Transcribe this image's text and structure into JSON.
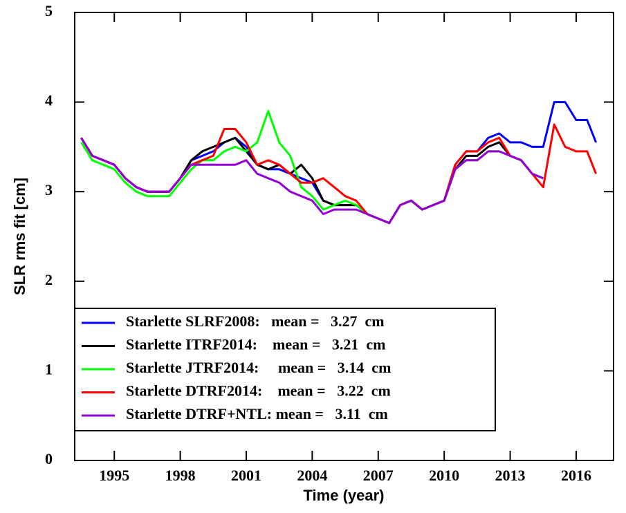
{
  "chart_data": {
    "type": "line",
    "xlabel": "Time (year)",
    "ylabel": "SLR rms fit [cm]",
    "x": [
      1993.5,
      1994,
      1994.5,
      1995,
      1995.5,
      1996,
      1996.5,
      1997,
      1997.5,
      1998,
      1998.5,
      1999,
      1999.5,
      2000,
      2000.5,
      2001,
      2001.5,
      2002,
      2002.5,
      2003,
      2003.5,
      2004,
      2004.5,
      2005,
      2005.5,
      2006,
      2006.5,
      2007,
      2007.5,
      2008,
      2008.5,
      2009,
      2009.5,
      2010,
      2010.5,
      2011,
      2011.5,
      2012,
      2012.5,
      2013,
      2013.5,
      2014,
      2014.5,
      2015,
      2015.5,
      2016,
      2016.5,
      2016.9
    ],
    "series": [
      {
        "name": "Starlette SLRF2008:   mean =   3.27  cm",
        "color": "#0000ff",
        "values": [
          3.6,
          3.4,
          3.35,
          3.3,
          3.15,
          3.05,
          3.0,
          3.0,
          3.0,
          3.15,
          3.35,
          3.4,
          3.45,
          3.55,
          3.6,
          3.5,
          3.3,
          3.25,
          3.25,
          3.2,
          3.15,
          3.1,
          2.9,
          2.85,
          2.85,
          2.85,
          2.75,
          2.7,
          2.65,
          2.85,
          2.9,
          2.8,
          2.85,
          2.9,
          3.3,
          3.45,
          3.45,
          3.6,
          3.65,
          3.55,
          3.55,
          3.5,
          3.5,
          4.0,
          4.0,
          3.8,
          3.8,
          3.55
        ]
      },
      {
        "name": "Starlette ITRF2014:    mean =   3.21  cm",
        "color": "#000000",
        "values": [
          3.6,
          3.4,
          3.35,
          3.3,
          3.15,
          3.05,
          3.0,
          3.0,
          3.0,
          3.15,
          3.35,
          3.45,
          3.5,
          3.55,
          3.6,
          3.45,
          3.3,
          3.25,
          3.3,
          3.2,
          3.3,
          3.15,
          2.9,
          2.85,
          2.85,
          2.85,
          2.75,
          2.7,
          2.65,
          2.85,
          2.9,
          2.8,
          2.85,
          2.9,
          3.25,
          3.4,
          3.4,
          3.5,
          3.55,
          3.4,
          3.35,
          3.2,
          3.15,
          null,
          null,
          null,
          null,
          null
        ]
      },
      {
        "name": "Starlette JTRF2014:     mean =   3.14  cm",
        "color": "#00ff00",
        "values": [
          3.55,
          3.35,
          3.3,
          3.25,
          3.1,
          3.0,
          2.95,
          2.95,
          2.95,
          3.1,
          3.25,
          3.35,
          3.35,
          3.45,
          3.5,
          3.45,
          3.55,
          3.9,
          3.55,
          3.4,
          3.05,
          2.95,
          2.8,
          2.85,
          2.9,
          2.85,
          2.75,
          2.7,
          2.65,
          2.85,
          2.9,
          2.8,
          2.85,
          2.9,
          3.25,
          3.35,
          3.35,
          3.45,
          3.45,
          3.4,
          3.35,
          3.2,
          3.15,
          null,
          null,
          null,
          null,
          null
        ]
      },
      {
        "name": "Starlette DTRF2014:    mean =   3.22  cm",
        "color": "#ff0000",
        "values": [
          3.6,
          3.4,
          3.35,
          3.3,
          3.15,
          3.05,
          3.0,
          3.0,
          3.0,
          3.15,
          3.3,
          3.35,
          3.4,
          3.7,
          3.7,
          3.55,
          3.3,
          3.35,
          3.3,
          3.2,
          3.1,
          3.1,
          3.15,
          3.05,
          2.95,
          2.9,
          2.75,
          2.7,
          2.65,
          2.85,
          2.9,
          2.8,
          2.85,
          2.9,
          3.3,
          3.45,
          3.45,
          3.55,
          3.6,
          3.4,
          3.35,
          3.2,
          3.05,
          3.75,
          3.5,
          3.45,
          3.45,
          3.2
        ]
      },
      {
        "name": "Starlette DTRF+NTL: mean =   3.11  cm",
        "color": "#9400d3",
        "values": [
          3.6,
          3.4,
          3.35,
          3.3,
          3.15,
          3.05,
          3.0,
          3.0,
          3.0,
          3.15,
          3.3,
          3.3,
          3.3,
          3.3,
          3.3,
          3.35,
          3.2,
          3.15,
          3.1,
          3.0,
          2.95,
          2.9,
          2.75,
          2.8,
          2.8,
          2.8,
          2.75,
          2.7,
          2.65,
          2.85,
          2.9,
          2.8,
          2.85,
          2.9,
          3.25,
          3.35,
          3.35,
          3.45,
          3.45,
          3.4,
          3.35,
          3.2,
          3.15,
          null,
          null,
          null,
          null,
          null
        ]
      }
    ],
    "xlim": [
      1993.2,
      2017.7
    ],
    "xticks": [
      1995,
      1998,
      2001,
      2004,
      2007,
      2010,
      2013,
      2016
    ],
    "ylim": [
      0,
      5
    ],
    "yticks": [
      0,
      1,
      2,
      3,
      4,
      5
    ],
    "legend": "lower-left"
  }
}
